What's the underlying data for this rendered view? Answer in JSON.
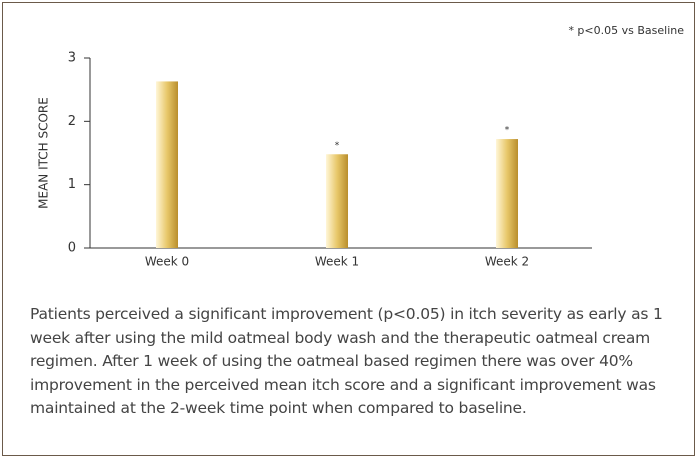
{
  "chart_data": {
    "type": "bar",
    "annotation": "* p<0.05 vs Baseline",
    "ylabel": "MEAN ITCH SCORE",
    "categories": [
      "Week 0",
      "Week 1",
      "Week 2"
    ],
    "values": [
      2.63,
      1.48,
      1.72
    ],
    "markers": [
      null,
      "*",
      "*"
    ],
    "color": "#e8c86a",
    "ylim": [
      0,
      3
    ],
    "yticks": [
      0,
      1,
      2,
      3
    ],
    "grid": false
  },
  "description": "Patients perceived a significant improvement (p<0.05) in itch severity as early as 1 week after using the mild oatmeal body wash and the therapeutic oatmeal cream regimen. After 1 week of using the oatmeal based regimen there was over 40% improvement in the perceived mean itch score and a significant improvement was maintained at the 2-week time point when compared to baseline."
}
